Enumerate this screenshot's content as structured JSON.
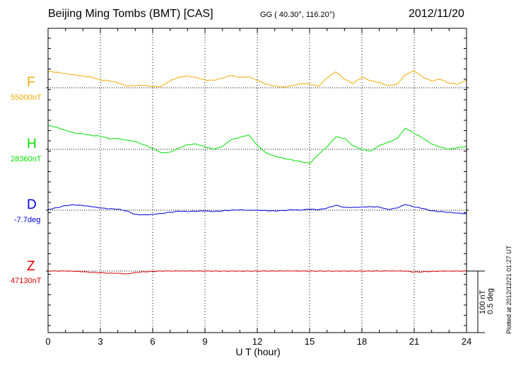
{
  "header": {
    "station": "Beijing Ming Tombs (BMT)  [CAS]",
    "coords": "GG ( 40.30°, 116.20°)",
    "date": "2012/11/20"
  },
  "plot_note": "Plotted at 2012/12/21 01:27 UT",
  "scale_text": "100 nT\n0.5 deg",
  "chart_data": {
    "type": "line",
    "xlabel": "U T (hour)",
    "xlim": [
      0,
      24
    ],
    "x_ticks": [
      "0",
      "3",
      "6",
      "9",
      "12",
      "15",
      "18",
      "21",
      "24"
    ],
    "grid": "dotted vertical every 3 hours",
    "scale_bar": {
      "nT": 100,
      "deg": 0.5
    },
    "x": [
      0,
      0.5,
      1,
      1.5,
      2,
      2.5,
      3,
      3.5,
      4,
      4.5,
      5,
      5.5,
      6,
      6.5,
      7,
      7.5,
      8,
      8.5,
      9,
      9.5,
      10,
      10.5,
      11,
      11.5,
      12,
      12.5,
      13,
      13.5,
      14,
      14.5,
      15,
      15.5,
      16,
      16.5,
      17,
      17.5,
      18,
      18.5,
      19,
      19.5,
      20,
      20.5,
      21,
      21.5,
      22,
      22.5,
      23,
      23.5,
      24
    ],
    "series": [
      {
        "name": "F",
        "baseline": "55000nT",
        "color": "#f5a800",
        "values": [
          46,
          44,
          40,
          37,
          33,
          30,
          22,
          20,
          14,
          5,
          6,
          7,
          3,
          4,
          20,
          30,
          33,
          29,
          22,
          21,
          27,
          35,
          29,
          31,
          21,
          10,
          5,
          2,
          6,
          12,
          11,
          4,
          28,
          45,
          24,
          12,
          30,
          20,
          15,
          6,
          10,
          37,
          48,
          30,
          19,
          24,
          13,
          10,
          22
        ]
      },
      {
        "name": "H",
        "baseline": "28360nT",
        "color": "#00e000",
        "values": [
          68,
          62,
          54,
          46,
          44,
          39,
          37,
          30,
          30,
          26,
          22,
          13,
          3,
          -10,
          -8,
          4,
          13,
          15,
          7,
          0,
          8,
          27,
          34,
          41,
          12,
          -10,
          -19,
          -25,
          -30,
          -35,
          -40,
          -15,
          7,
          35,
          31,
          10,
          0,
          -5,
          11,
          20,
          30,
          60,
          45,
          31,
          15,
          6,
          0,
          5,
          8
        ]
      },
      {
        "name": "D",
        "baseline": "-7.7deg",
        "color": "#0000e0",
        "values": [
          2,
          7,
          13,
          15,
          13,
          10,
          6,
          4,
          3,
          -2,
          -12,
          -13,
          -12,
          -9,
          -6,
          -3,
          -4,
          -3,
          -2,
          -4,
          -2,
          0,
          1,
          0,
          0,
          -1,
          -2,
          -1,
          1,
          0,
          3,
          1,
          6,
          14,
          8,
          8,
          9,
          10,
          9,
          2,
          6,
          16,
          9,
          5,
          -2,
          -4,
          -6,
          -8,
          -10
        ]
      },
      {
        "name": "Z",
        "baseline": "47130nT",
        "color": "#e00000",
        "values": [
          0,
          0,
          0,
          -1,
          -2,
          -4,
          -5,
          -6,
          -6,
          -8,
          -4,
          -2,
          -1,
          0,
          0,
          0,
          0,
          0,
          0,
          0,
          0,
          0,
          0,
          0,
          0,
          0,
          0,
          0,
          0,
          0,
          0,
          0,
          0,
          0,
          0,
          0,
          0,
          0,
          0,
          0,
          0,
          0,
          -3,
          -2,
          -1,
          0,
          0,
          0,
          0
        ]
      }
    ]
  }
}
